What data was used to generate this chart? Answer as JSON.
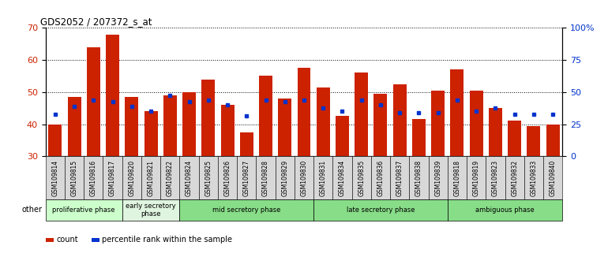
{
  "title": "GDS2052 / 207372_s_at",
  "samples": [
    "GSM109814",
    "GSM109815",
    "GSM109816",
    "GSM109817",
    "GSM109820",
    "GSM109821",
    "GSM109822",
    "GSM109824",
    "GSM109825",
    "GSM109826",
    "GSM109827",
    "GSM109828",
    "GSM109829",
    "GSM109830",
    "GSM109831",
    "GSM109834",
    "GSM109835",
    "GSM109836",
    "GSM109837",
    "GSM109838",
    "GSM109839",
    "GSM109818",
    "GSM109819",
    "GSM109823",
    "GSM109832",
    "GSM109833",
    "GSM109840"
  ],
  "count_values": [
    40,
    48.5,
    64,
    68,
    48.5,
    44,
    49,
    50,
    54,
    46,
    37.5,
    55,
    48,
    57.5,
    51.5,
    42.5,
    56,
    49.5,
    52.5,
    41.5,
    50.5,
    57,
    50.5,
    45,
    41,
    39.5,
    40
  ],
  "percentile_values": [
    43,
    45.5,
    47.5,
    47,
    45.5,
    44,
    49,
    47,
    47.5,
    46,
    42.5,
    47.5,
    47,
    47.5,
    45,
    44,
    47.5,
    46,
    43.5,
    43.5,
    43.5,
    47.5,
    44,
    45,
    43,
    43,
    43
  ],
  "groups": [
    {
      "label": "proliferative phase",
      "color": "#ccffcc",
      "start": 0,
      "end": 4
    },
    {
      "label": "early secretory\nphase",
      "color": "#e0f5e0",
      "start": 4,
      "end": 7
    },
    {
      "label": "mid secretory phase",
      "color": "#88dd88",
      "start": 7,
      "end": 14
    },
    {
      "label": "late secretory phase",
      "color": "#88dd88",
      "start": 14,
      "end": 21
    },
    {
      "label": "ambiguous phase",
      "color": "#88dd88",
      "start": 21,
      "end": 27
    }
  ],
  "bar_color": "#cc2200",
  "dot_color": "#0033cc",
  "ylim_left": [
    30,
    70
  ],
  "ylim_right": [
    0,
    100
  ],
  "yticks_left": [
    30,
    40,
    50,
    60,
    70
  ],
  "yticks_right": [
    0,
    25,
    50,
    75,
    100
  ],
  "ytick_labels_right": [
    "0",
    "25",
    "50",
    "75",
    "100%"
  ],
  "bar_width": 0.7,
  "tick_label_bg": "#d8d8d8",
  "background_color": "#ffffff"
}
